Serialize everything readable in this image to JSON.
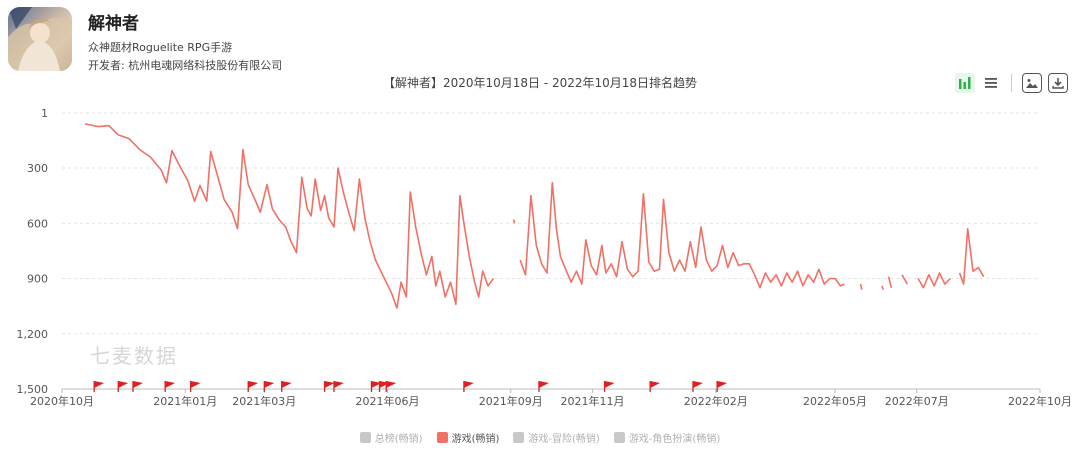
{
  "app": {
    "name": "解神者",
    "genre": "众神题材Roguelite RPG手游",
    "developer": "开发者: 杭州电魂网络科技股份有限公司"
  },
  "toolbar": {
    "icons": [
      "bar-chart-icon",
      "list-icon",
      "image-icon",
      "download-icon"
    ],
    "active_color": "#2bb24c"
  },
  "watermark": "七麦数据",
  "chart_data": {
    "type": "line",
    "title": "【解神者】2020年10月18日 - 2022年10月18日排名趋势",
    "xlabel": "",
    "ylabel": "",
    "y_inverted": true,
    "ylim": [
      1,
      1500
    ],
    "yticks": [
      1,
      300,
      600,
      900,
      1200,
      1500
    ],
    "ytick_labels": [
      "1",
      "300",
      "600",
      "900",
      "1,200",
      "1,500"
    ],
    "xlim": [
      "2020-10-01",
      "2022-10-01"
    ],
    "xticks": [
      "2020-10-01",
      "2021-01-01",
      "2021-03-01",
      "2021-06-01",
      "2021-09-01",
      "2021-11-01",
      "2022-02-01",
      "2022-05-01",
      "2022-07-01",
      "2022-10-01"
    ],
    "xtick_labels": [
      "2020年10月",
      "2021年01月",
      "2021年03月",
      "2021年06月",
      "2021年09月",
      "2021年11月",
      "2022年02月",
      "2022年05月",
      "2022年07月",
      "2022年10月"
    ],
    "grid": "horizontal dashed",
    "legend_position": "bottom",
    "legend": [
      {
        "name": "总榜(畅销)",
        "color": "#c8c8c8",
        "active": false
      },
      {
        "name": "游戏(畅销)",
        "color": "#f07065",
        "active": true
      },
      {
        "name": "游戏-冒险(畅销)",
        "color": "#c8c8c8",
        "active": false
      },
      {
        "name": "游戏-角色扮演(畅销)",
        "color": "#c8c8c8",
        "active": false
      }
    ],
    "series": [
      {
        "name": "游戏(畅销)",
        "color": "#f07065",
        "segments": [
          [
            [
              "2020-10-18",
              60
            ],
            [
              "2020-10-28",
              75
            ],
            [
              "2020-11-05",
              70
            ],
            [
              "2020-11-12",
              120
            ],
            [
              "2020-11-20",
              140
            ],
            [
              "2020-11-28",
              200
            ],
            [
              "2020-12-06",
              240
            ],
            [
              "2020-12-14",
              310
            ],
            [
              "2020-12-18",
              380
            ],
            [
              "2020-12-22",
              205
            ],
            [
              "2020-12-28",
              290
            ],
            [
              "2021-01-03",
              370
            ],
            [
              "2021-01-08",
              480
            ],
            [
              "2021-01-12",
              395
            ],
            [
              "2021-01-17",
              480
            ],
            [
              "2021-01-20",
              210
            ],
            [
              "2021-01-25",
              340
            ],
            [
              "2021-01-30",
              470
            ],
            [
              "2021-02-05",
              540
            ],
            [
              "2021-02-09",
              630
            ],
            [
              "2021-02-13",
              200
            ],
            [
              "2021-02-17",
              390
            ],
            [
              "2021-02-22",
              470
            ],
            [
              "2021-02-26",
              540
            ],
            [
              "2021-03-03",
              390
            ],
            [
              "2021-03-07",
              520
            ],
            [
              "2021-03-12",
              580
            ],
            [
              "2021-03-17",
              620
            ],
            [
              "2021-03-21",
              700
            ],
            [
              "2021-03-25",
              760
            ],
            [
              "2021-03-29",
              350
            ],
            [
              "2021-04-02",
              520
            ],
            [
              "2021-04-05",
              560
            ],
            [
              "2021-04-08",
              360
            ],
            [
              "2021-04-12",
              530
            ],
            [
              "2021-04-15",
              450
            ],
            [
              "2021-04-18",
              570
            ],
            [
              "2021-04-22",
              620
            ],
            [
              "2021-04-25",
              300
            ],
            [
              "2021-04-29",
              430
            ],
            [
              "2021-05-03",
              540
            ],
            [
              "2021-05-07",
              640
            ],
            [
              "2021-05-11",
              360
            ],
            [
              "2021-05-15",
              570
            ],
            [
              "2021-05-19",
              700
            ],
            [
              "2021-05-23",
              800
            ],
            [
              "2021-05-27",
              860
            ],
            [
              "2021-05-31",
              920
            ],
            [
              "2021-06-04",
              980
            ],
            [
              "2021-06-08",
              1060
            ],
            [
              "2021-06-11",
              920
            ],
            [
              "2021-06-15",
              1000
            ],
            [
              "2021-06-18",
              430
            ],
            [
              "2021-06-22",
              620
            ],
            [
              "2021-06-26",
              760
            ],
            [
              "2021-06-30",
              880
            ],
            [
              "2021-07-04",
              780
            ],
            [
              "2021-07-07",
              940
            ],
            [
              "2021-07-10",
              860
            ],
            [
              "2021-07-14",
              1000
            ],
            [
              "2021-07-18",
              920
            ],
            [
              "2021-07-22",
              1040
            ],
            [
              "2021-07-25",
              450
            ],
            [
              "2021-07-28",
              600
            ],
            [
              "2021-08-01",
              780
            ],
            [
              "2021-08-05",
              920
            ],
            [
              "2021-08-08",
              1000
            ],
            [
              "2021-08-11",
              860
            ],
            [
              "2021-08-15",
              940
            ],
            [
              "2021-08-19",
              900
            ]
          ],
          [
            [
              "2021-09-03",
              580
            ],
            [
              "2021-09-04",
              600
            ]
          ],
          [
            [
              "2021-09-08",
              800
            ],
            [
              "2021-09-12",
              880
            ],
            [
              "2021-09-16",
              450
            ],
            [
              "2021-09-20",
              720
            ],
            [
              "2021-09-24",
              820
            ],
            [
              "2021-09-28",
              870
            ],
            [
              "2021-10-02",
              380
            ],
            [
              "2021-10-05",
              630
            ],
            [
              "2021-10-08",
              780
            ],
            [
              "2021-10-12",
              850
            ],
            [
              "2021-10-16",
              920
            ],
            [
              "2021-10-20",
              860
            ],
            [
              "2021-10-24",
              930
            ],
            [
              "2021-10-27",
              690
            ],
            [
              "2021-10-31",
              830
            ],
            [
              "2021-11-04",
              880
            ],
            [
              "2021-11-08",
              720
            ],
            [
              "2021-11-11",
              870
            ],
            [
              "2021-11-15",
              820
            ],
            [
              "2021-11-19",
              890
            ],
            [
              "2021-11-23",
              700
            ],
            [
              "2021-11-27",
              850
            ],
            [
              "2021-12-01",
              890
            ],
            [
              "2021-12-05",
              860
            ],
            [
              "2021-12-09",
              440
            ],
            [
              "2021-12-13",
              810
            ],
            [
              "2021-12-17",
              860
            ],
            [
              "2021-12-21",
              850
            ],
            [
              "2021-12-24",
              470
            ],
            [
              "2021-12-28",
              760
            ],
            [
              "2022-01-01",
              860
            ],
            [
              "2022-01-05",
              800
            ],
            [
              "2022-01-09",
              860
            ],
            [
              "2022-01-13",
              700
            ],
            [
              "2022-01-17",
              840
            ],
            [
              "2022-01-21",
              620
            ],
            [
              "2022-01-25",
              800
            ],
            [
              "2022-01-29",
              860
            ],
            [
              "2022-02-02",
              830
            ],
            [
              "2022-02-06",
              720
            ],
            [
              "2022-02-10",
              840
            ],
            [
              "2022-02-14",
              760
            ],
            [
              "2022-02-18",
              830
            ],
            [
              "2022-02-22",
              820
            ],
            [
              "2022-02-26",
              820
            ],
            [
              "2022-03-02",
              880
            ],
            [
              "2022-03-06",
              950
            ],
            [
              "2022-03-10",
              870
            ],
            [
              "2022-03-14",
              920
            ],
            [
              "2022-03-18",
              880
            ],
            [
              "2022-03-22",
              940
            ],
            [
              "2022-03-26",
              870
            ],
            [
              "2022-03-30",
              920
            ],
            [
              "2022-04-03",
              860
            ],
            [
              "2022-04-07",
              940
            ],
            [
              "2022-04-11",
              880
            ],
            [
              "2022-04-15",
              920
            ],
            [
              "2022-04-19",
              850
            ],
            [
              "2022-04-23",
              930
            ],
            [
              "2022-04-27",
              900
            ],
            [
              "2022-05-01",
              900
            ],
            [
              "2022-05-05",
              940
            ],
            [
              "2022-05-08",
              930
            ]
          ],
          [
            [
              "2022-05-20",
              930
            ],
            [
              "2022-05-21",
              960
            ]
          ],
          [
            [
              "2022-06-05",
              940
            ],
            [
              "2022-06-06",
              960
            ]
          ],
          [
            [
              "2022-06-10",
              890
            ],
            [
              "2022-06-12",
              950
            ]
          ],
          [
            [
              "2022-06-20",
              880
            ],
            [
              "2022-06-24",
              930
            ]
          ],
          [
            [
              "2022-07-02",
              900
            ],
            [
              "2022-07-06",
              950
            ],
            [
              "2022-07-10",
              880
            ],
            [
              "2022-07-14",
              940
            ],
            [
              "2022-07-18",
              870
            ],
            [
              "2022-07-22",
              930
            ],
            [
              "2022-07-26",
              900
            ]
          ],
          [
            [
              "2022-08-02",
              870
            ],
            [
              "2022-08-05",
              930
            ],
            [
              "2022-08-08",
              630
            ],
            [
              "2022-08-12",
              860
            ],
            [
              "2022-08-16",
              840
            ],
            [
              "2022-08-20",
              890
            ]
          ]
        ]
      }
    ],
    "event_flags": [
      "2020-10-25",
      "2020-11-12",
      "2020-11-23",
      "2020-12-17",
      "2021-01-05",
      "2021-02-17",
      "2021-03-01",
      "2021-03-14",
      "2021-04-15",
      "2021-04-22",
      "2021-05-20",
      "2021-05-26",
      "2021-05-31",
      "2021-07-28",
      "2021-09-22",
      "2021-11-10",
      "2021-12-14",
      "2022-01-15",
      "2022-02-02"
    ]
  }
}
